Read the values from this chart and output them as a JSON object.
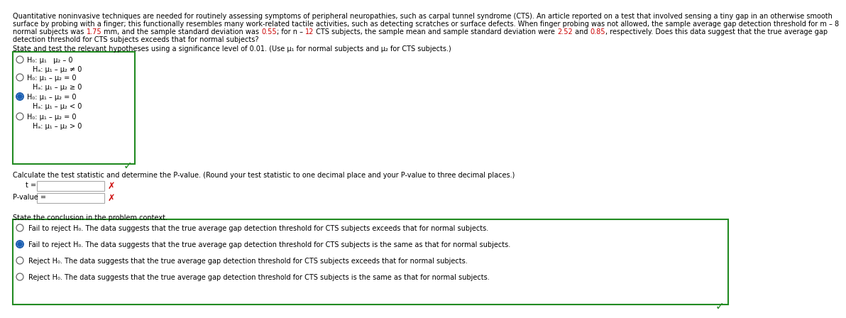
{
  "bg_color": "#ffffff",
  "text_color": "#000000",
  "highlight_color": "#cc0000",
  "blue_color": "#0000cc",
  "green_color": "#228B22",
  "paragraph1": "Quantitative noninvasive techniques are needed for routinely assessing symptoms of peripheral neuropathies, such as carpal tunnel syndrome (CTS). An article reported on a test that involved sensing a tiny gap in an otherwise smooth",
  "paragraph2": "surface by probing with a finger; this functionally resembles many work-related tactile activities, such as detecting scratches or surface defects. When finger probing was not allowed, the sample average gap detection threshold for m – 8",
  "paragraph3_parts": [
    [
      "normal subjects was ",
      "#000000"
    ],
    [
      "1.75",
      "#cc0000"
    ],
    [
      " mm, and the sample standard deviation was ",
      "#000000"
    ],
    [
      "0.55",
      "#cc0000"
    ],
    [
      "; for n – ",
      "#000000"
    ],
    [
      "12",
      "#cc0000"
    ],
    [
      " CTS subjects, the sample mean and sample standard deviation were ",
      "#000000"
    ],
    [
      "2.52",
      "#cc0000"
    ],
    [
      " and ",
      "#000000"
    ],
    [
      "0.85",
      "#cc0000"
    ],
    [
      ", respectively. Does this data suggest that the true average gap",
      "#000000"
    ]
  ],
  "paragraph4": "detection threshold for CTS subjects exceeds that for normal subjects?",
  "section1_label": "State and test the relevant hypotheses using a significance level of 0.01. (Use μ₁ for normal subjects and μ₂ for CTS subjects.)",
  "radio_options": [
    {
      "selected": false,
      "h0": "H₀: μ₁   μ₂ – 0",
      "ha": "Hₐ: μ₁ – μ₂ ≠ 0"
    },
    {
      "selected": false,
      "h0": "H₀: μ₁ – μ₂ = 0",
      "ha": "Hₐ: μ₁ – μ₂ ≥ 0"
    },
    {
      "selected": true,
      "h0": "H₀: μ₁ – μ₂ = 0",
      "ha": "Hₐ: μ₁ – μ₂ < 0"
    },
    {
      "selected": false,
      "h0": "H₀: μ₁ – μ₂ = 0",
      "ha": "Hₐ: μ₁ – μ₂ > 0"
    }
  ],
  "section2_label": "Calculate the test statistic and determine the P-value. (Round your test statistic to one decimal place and your P-value to three decimal places.)",
  "section3_label": "State the conclusion in the problem context.",
  "conclusion_options": [
    {
      "selected": false,
      "text": "Fail to reject H₀. The data suggests that the true average gap detection threshold for CTS subjects exceeds that for normal subjects."
    },
    {
      "selected": true,
      "text": "Fail to reject H₀. The data suggests that the true average gap detection threshold for CTS subjects is the same as that for normal subjects."
    },
    {
      "selected": false,
      "text": "Reject H₀. The data suggests that the true average gap detection threshold for CTS subjects exceeds that for normal subjects."
    },
    {
      "selected": false,
      "text": "Reject H₀. The data suggests that the true average gap detection threshold for CTS subjects is the same as that for normal subjects."
    }
  ]
}
